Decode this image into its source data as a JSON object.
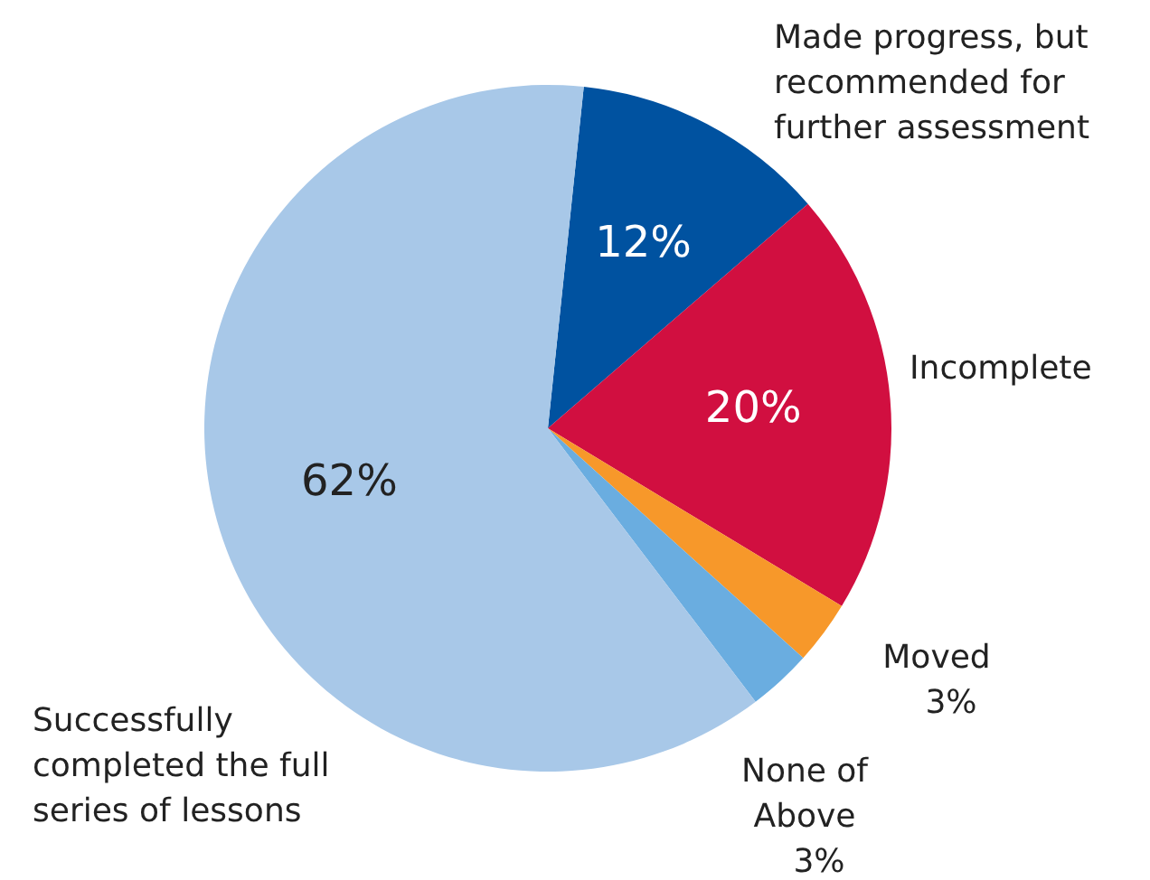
{
  "chart_data": {
    "type": "pie",
    "categories": [
      "Made progress, but recommended for further assessment",
      "Incomplete",
      "Moved",
      "None of Above",
      "Successfully completed the full series of lessons"
    ],
    "values": [
      12,
      20,
      3,
      3,
      62
    ],
    "colors": [
      "#0052a0",
      "#d10f40",
      "#f7982a",
      "#6aade0",
      "#a8c8e8"
    ],
    "value_labels": [
      "12%",
      "20%",
      "3%",
      "3%",
      "62%"
    ],
    "legend": false
  }
}
